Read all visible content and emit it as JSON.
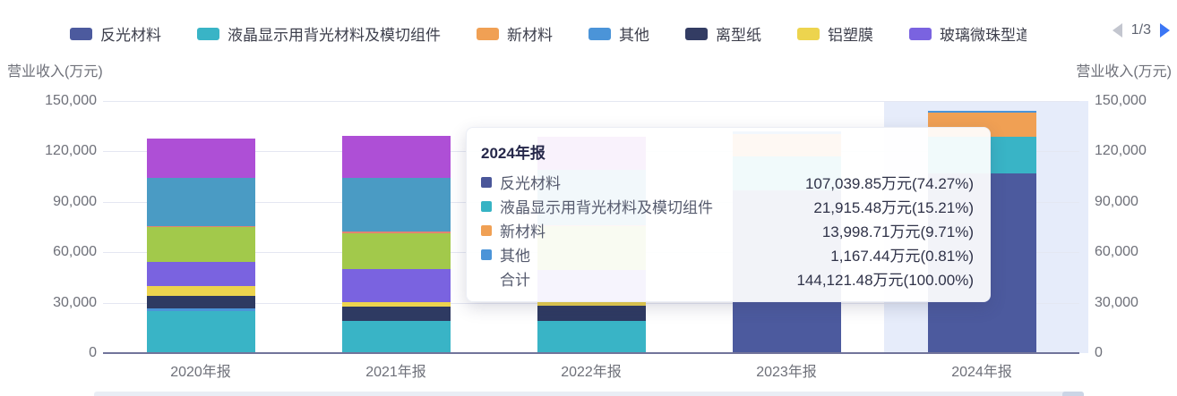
{
  "legend": {
    "items": [
      {
        "label": "反光材料",
        "color": "#4c5a9e",
        "truncated": false
      },
      {
        "label": "液晶显示用背光材料及模切组件",
        "color": "#39b4c6",
        "truncated": false
      },
      {
        "label": "新材料",
        "color": "#f0a054",
        "truncated": false
      },
      {
        "label": "其他",
        "color": "#4b94d8",
        "truncated": false
      },
      {
        "label": "离型纸",
        "color": "#333c63",
        "truncated": false
      },
      {
        "label": "铝塑膜",
        "color": "#edd44e",
        "truncated": false
      },
      {
        "label": "玻璃微珠型道",
        "color": "#7a63e0",
        "truncated": true
      }
    ],
    "pager": {
      "label": "1/3",
      "prev_enabled": false,
      "next_enabled": true,
      "next_color": "#3b76f5",
      "prev_color": "#c3c6cf"
    }
  },
  "axes": {
    "left_title": "营业收入(万元)",
    "right_title": "营业收入(万元)",
    "ytick_labels": [
      "150,000",
      "120,000",
      "90,000",
      "60,000",
      "30,000",
      "0"
    ],
    "ytick_values": [
      150000,
      120000,
      90000,
      60000,
      30000,
      0
    ]
  },
  "tooltip": {
    "title": "2024年报",
    "rows": [
      {
        "label": "反光材料",
        "color": "#4a5699",
        "value": "107,039.85万元(74.27%)"
      },
      {
        "label": "液晶显示用背光材料及模切组件",
        "color": "#36b3c4",
        "value": "21,915.48万元(15.21%)"
      },
      {
        "label": "新材料",
        "color": "#f0a054",
        "value": "13,998.71万元(9.71%)"
      },
      {
        "label": "其他",
        "color": "#4b94d8",
        "value": "1,167.44万元(0.81%)"
      },
      {
        "label": "合计",
        "color": "",
        "value": "144,121.48万元(100.00%)"
      }
    ]
  },
  "chart_data": {
    "type": "bar",
    "stacked": true,
    "title": "营业收入(万元)",
    "ylabel": "营业收入(万元)",
    "unit": "万元",
    "ylim": [
      0,
      150000
    ],
    "yticks": [
      0,
      30000,
      60000,
      90000,
      120000,
      150000
    ],
    "categories": [
      "2020年报",
      "2021年报",
      "2022年报",
      "2023年报",
      "2024年报"
    ],
    "highlight_index": 4,
    "legend_position": "top",
    "series": [
      {
        "name": "反光材料",
        "color": "#4c5a9e",
        "values": [
          0,
          0,
          0,
          97000,
          107039.85
        ]
      },
      {
        "name": "液晶显示用背光材料及模切组件",
        "color": "#39b4c6",
        "values": [
          25000,
          19000,
          19000,
          20000,
          21915.48
        ]
      },
      {
        "name": "新材料",
        "color": "#f0a054",
        "values": [
          0,
          0,
          0,
          13500,
          13998.71
        ]
      },
      {
        "name": "其他",
        "color": "#4b94d8",
        "values": [
          1500,
          0,
          0,
          1500,
          1167.44
        ]
      },
      {
        "name": "离型纸",
        "color": "#2e3a62",
        "values": [
          7500,
          8500,
          9000,
          0,
          0
        ]
      },
      {
        "name": "铝塑膜",
        "color": "#edd44e",
        "values": [
          6000,
          3000,
          2500,
          0,
          0
        ]
      },
      {
        "name": "玻璃微珠型道",
        "color": "#7a63e0",
        "values": [
          14500,
          19500,
          19000,
          0,
          0
        ]
      },
      {
        "name": "",
        "color": "#a2c94b",
        "values": [
          20500,
          21500,
          26000,
          0,
          0
        ]
      },
      {
        "name": "",
        "color": "#e28472",
        "values": [
          400,
          1000,
          500,
          0,
          0
        ]
      },
      {
        "name": "",
        "color": "#4a9bc4",
        "values": [
          29000,
          31500,
          33000,
          0,
          0
        ]
      },
      {
        "name": "",
        "color": "#ae4fd6",
        "values": [
          23500,
          25000,
          19500,
          0,
          0
        ]
      }
    ]
  }
}
